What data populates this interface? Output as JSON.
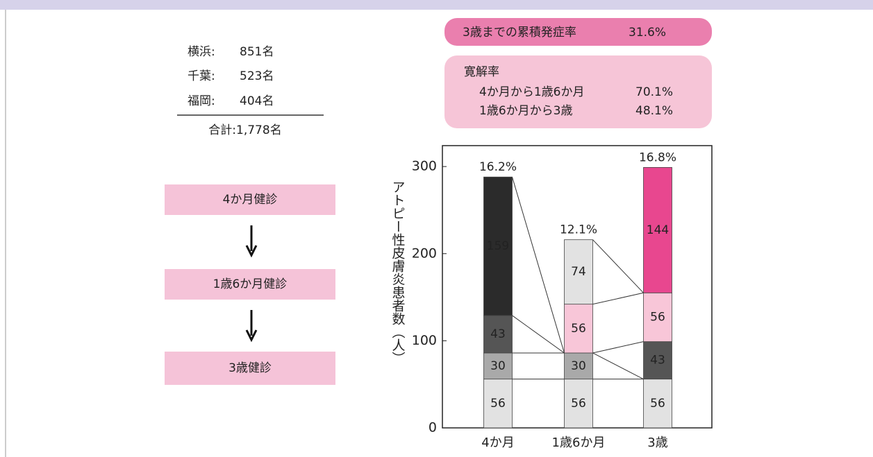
{
  "cohort": {
    "rows": [
      {
        "city": "横浜:",
        "count": "851名"
      },
      {
        "city": "千葉:",
        "count": "523名"
      },
      {
        "city": "福岡:",
        "count": "404名"
      }
    ],
    "total": "合計:1,778名"
  },
  "flow": [
    "4か月健診",
    "1歳6か月健診",
    "3歳健診"
  ],
  "cumulative": {
    "label": "3歳までの累積発症率",
    "value": "31.6%"
  },
  "remission": {
    "title": "寛解率",
    "rows": [
      {
        "label": "4か月から1歳6か月",
        "value": "70.1%"
      },
      {
        "label": "1歳6か月から3歳",
        "value": "48.1%"
      }
    ]
  },
  "chart_data": {
    "type": "stacked_bar",
    "y_label": "アトピー性皮膚炎患者数（人）",
    "categories": [
      "4か月",
      "1歳6か月",
      "3歳"
    ],
    "bar_top_labels": [
      "16.2%",
      "12.1%",
      "16.8%"
    ],
    "bars": [
      {
        "segments": [
          {
            "value": 56,
            "color": "#e2e2e2",
            "label_color": "#222"
          },
          {
            "value": 30,
            "color": "#a9a9a9",
            "label_color": "#222"
          },
          {
            "value": 43,
            "color": "#555555",
            "label_color": "#fff"
          },
          {
            "value": 159,
            "color": "#2b2b2b",
            "label_color": "#fff"
          }
        ]
      },
      {
        "segments": [
          {
            "value": 56,
            "color": "#e2e2e2",
            "label_color": "#222"
          },
          {
            "value": 30,
            "color": "#a9a9a9",
            "label_color": "#222"
          },
          {
            "value": 56,
            "color": "#f8c6d8",
            "label_color": "#222"
          },
          {
            "value": 74,
            "color": "#e2e2e2",
            "label_color": "#222"
          }
        ]
      },
      {
        "segments": [
          {
            "value": 56,
            "color": "#e2e2e2",
            "label_color": "#222"
          },
          {
            "value": 43,
            "color": "#555555",
            "label_color": "#fff"
          },
          {
            "value": 56,
            "color": "#f8c6d8",
            "label_color": "#222"
          },
          {
            "value": 144,
            "color": "#e8478f",
            "label_color": "#fff"
          }
        ]
      }
    ],
    "ylim": [
      0,
      324
    ],
    "yticks": [
      0,
      100,
      200,
      300
    ]
  }
}
